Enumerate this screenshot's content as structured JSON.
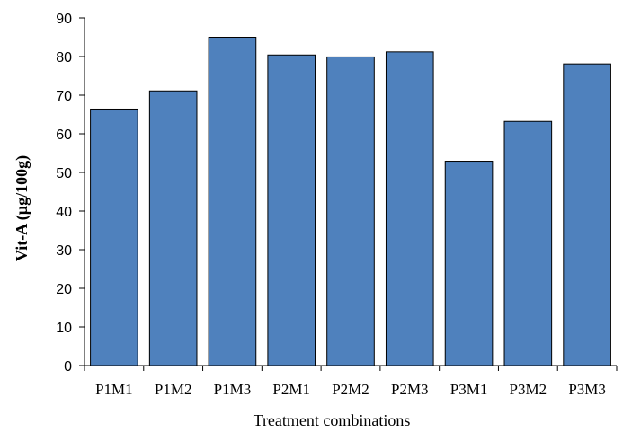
{
  "chart_data": {
    "type": "bar",
    "categories": [
      "P1M1",
      "P1M2",
      "P1M3",
      "P2M1",
      "P2M2",
      "P2M3",
      "P3M1",
      "P3M2",
      "P3M3"
    ],
    "values": [
      66.4,
      71.1,
      85.0,
      80.4,
      79.9,
      81.2,
      52.9,
      63.2,
      78.1
    ],
    "title": "",
    "xlabel": "Treatment combinations",
    "ylabel": "Vit-A (µg/100g)",
    "ylim": [
      0,
      90
    ],
    "yticks": [
      0,
      10,
      20,
      30,
      40,
      50,
      60,
      70,
      80,
      90
    ],
    "grid": false,
    "legend": "none",
    "colors": {
      "bar_fill": "#4f81bd",
      "bar_stroke": "#000000",
      "axis": "#000000"
    }
  }
}
